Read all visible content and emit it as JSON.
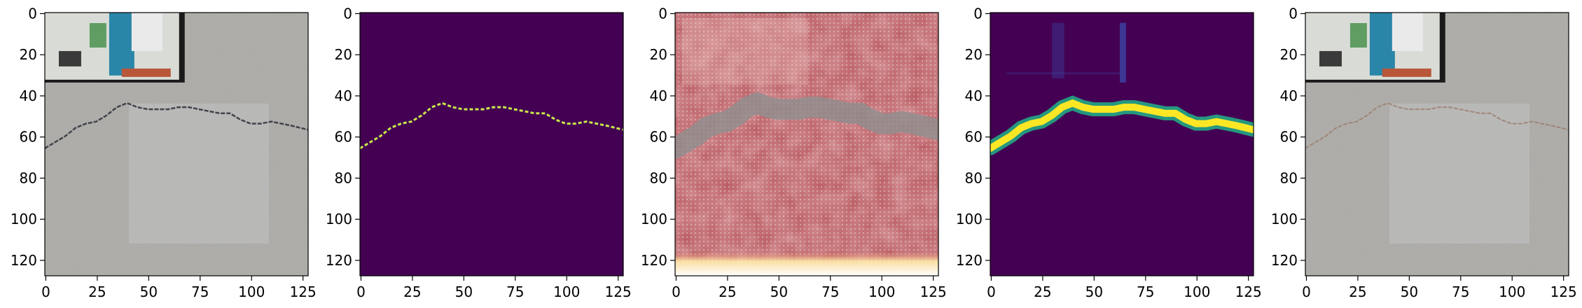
{
  "axes": {
    "x_ticks": [
      0,
      25,
      50,
      75,
      100,
      125
    ],
    "y_ticks": [
      0,
      20,
      40,
      60,
      80,
      100,
      120
    ],
    "data_extent": [
      0,
      128
    ]
  },
  "panels": [
    {
      "id": "input-image",
      "kind": "photo"
    },
    {
      "id": "ground-truth-mask",
      "kind": "mask"
    },
    {
      "id": "activation-map",
      "kind": "activation"
    },
    {
      "id": "predicted-mask",
      "kind": "prediction"
    },
    {
      "id": "overlay-image",
      "kind": "overlay"
    }
  ],
  "crack_polyline": [
    [
      0,
      66
    ],
    [
      5,
      63
    ],
    [
      10,
      60
    ],
    [
      15,
      56
    ],
    [
      20,
      54
    ],
    [
      25,
      53
    ],
    [
      30,
      50
    ],
    [
      35,
      46
    ],
    [
      40,
      44
    ],
    [
      45,
      46
    ],
    [
      50,
      47
    ],
    [
      55,
      47
    ],
    [
      60,
      47
    ],
    [
      65,
      46
    ],
    [
      70,
      46
    ],
    [
      75,
      47
    ],
    [
      80,
      48
    ],
    [
      85,
      49
    ],
    [
      90,
      49
    ],
    [
      95,
      52
    ],
    [
      100,
      54
    ],
    [
      105,
      54
    ],
    [
      110,
      53
    ],
    [
      115,
      54
    ],
    [
      120,
      55
    ],
    [
      128,
      57
    ]
  ],
  "inset_box": [
    0,
    68,
    0,
    34
  ],
  "colors": {
    "concrete": "#a8a6a2",
    "mask_bg": "#440154",
    "mask_line": "#c8e84a",
    "pred_edge": "#22a884",
    "pred_core": "#fde725",
    "act_bg": "#b8585e",
    "act_band": "#8f8f8f",
    "act_bottom": "#fff6c8",
    "overlay_crack": "#9b7a6a"
  }
}
